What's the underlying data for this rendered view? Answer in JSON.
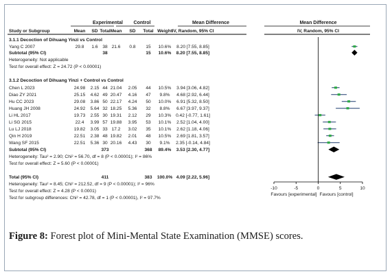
{
  "chart_data": {
    "type": "forest",
    "headers": {
      "group_exp": "Experimental",
      "group_ctl": "Control",
      "col_md": "Mean Difference",
      "study": "Study or Subgroup",
      "mean": "Mean",
      "sd": "SD",
      "total": "Total",
      "weight": "Weight",
      "method": "IV, Random, 95% CI",
      "plot_title": "Mean Difference",
      "plot_method": "IV, Random, 95% CI"
    },
    "subgroups": [
      {
        "title": "3.1.1 Decoction of Dihuang Yinzi vs Control",
        "studies": [
          {
            "name": "Yang C 2007",
            "em": "29.8",
            "esd": "1.6",
            "en": "38",
            "cm": "21.6",
            "csd": "0.8",
            "cn": "15",
            "w": "10.6%",
            "ci": "8.20 [7.55, 8.85]",
            "md": 8.2,
            "lo": 7.55,
            "hi": 8.85
          }
        ],
        "subtotal": {
          "label": "Subtotal (95% CI)",
          "en": "38",
          "cn": "15",
          "w": "10.6%",
          "ci": "8.20 [7.55, 8.85]",
          "md": 8.2,
          "lo": 7.55,
          "hi": 8.85
        },
        "notes": [
          "Heterogeneity: Not applicable",
          "Test for overall effect: Z = 24.72 (P < 0.00001)"
        ]
      },
      {
        "title": "3.1.2 Decoction of Dihuang Yinzi + Control vs Control",
        "studies": [
          {
            "name": "Chen L 2023",
            "em": "24.98",
            "esd": "2.15",
            "en": "44",
            "cm": "21.04",
            "csd": "2.05",
            "cn": "44",
            "w": "10.5%",
            "ci": "3.94 [3.06, 4.82]",
            "md": 3.94,
            "lo": 3.06,
            "hi": 4.82
          },
          {
            "name": "Diao ZY 2021",
            "em": "25.15",
            "esd": "4.62",
            "en": "49",
            "cm": "20.47",
            "csd": "4.16",
            "cn": "47",
            "w": "9.8%",
            "ci": "4.68 [2.92, 6.44]",
            "md": 4.68,
            "lo": 2.92,
            "hi": 6.44
          },
          {
            "name": "Hu CC 2023",
            "em": "29.08",
            "esd": "3.86",
            "en": "50",
            "cm": "22.17",
            "csd": "4.24",
            "cn": "50",
            "w": "10.0%",
            "ci": "6.91 [5.32, 8.50]",
            "md": 6.91,
            "lo": 5.32,
            "hi": 8.5
          },
          {
            "name": "Huang JH 2008",
            "em": "24.92",
            "esd": "5.64",
            "en": "32",
            "cm": "18.25",
            "csd": "5.36",
            "cn": "32",
            "w": "8.8%",
            "ci": "6.67 [3.97, 9.37]",
            "md": 6.67,
            "lo": 3.97,
            "hi": 9.37
          },
          {
            "name": "Li HL 2017",
            "em": "19.73",
            "esd": "2.55",
            "en": "30",
            "cm": "19.31",
            "csd": "2.12",
            "cn": "29",
            "w": "10.3%",
            "ci": "0.42 [-0.77, 1.61]",
            "md": 0.42,
            "lo": -0.77,
            "hi": 1.61
          },
          {
            "name": "Li SG 2015",
            "em": "22.4",
            "esd": "3.99",
            "en": "57",
            "cm": "19.88",
            "csd": "3.95",
            "cn": "53",
            "w": "10.1%",
            "ci": "2.52 [1.04, 4.00]",
            "md": 2.52,
            "lo": 1.04,
            "hi": 4.0
          },
          {
            "name": "Lu LJ 2018",
            "em": "19.82",
            "esd": "3.05",
            "en": "33",
            "cm": "17.2",
            "csd": "3.02",
            "cn": "35",
            "w": "10.1%",
            "ci": "2.62 [1.18, 4.06]",
            "md": 2.62,
            "lo": 1.18,
            "hi": 4.06
          },
          {
            "name": "Qin H 2019",
            "em": "22.51",
            "esd": "2.38",
            "en": "48",
            "cm": "19.82",
            "csd": "2.01",
            "cn": "48",
            "w": "10.5%",
            "ci": "2.69 [1.81, 3.57]",
            "md": 2.69,
            "lo": 1.81,
            "hi": 3.57
          },
          {
            "name": "Wang SF 2015",
            "em": "22.51",
            "esd": "5.36",
            "en": "30",
            "cm": "20.16",
            "csd": "4.43",
            "cn": "30",
            "w": "9.1%",
            "ci": "2.35 [-0.14, 4.84]",
            "md": 2.35,
            "lo": -0.14,
            "hi": 4.84
          }
        ],
        "subtotal": {
          "label": "Subtotal (95% CI)",
          "en": "373",
          "cn": "368",
          "w": "89.4%",
          "ci": "3.53 [2.30, 4.77]",
          "md": 3.53,
          "lo": 2.3,
          "hi": 4.77
        },
        "notes": [
          "Heterogeneity: Tau² = 2.90; Chi² = 56.70, df = 8 (P < 0.00001); I² = 86%",
          "Test for overall effect: Z = 5.60 (P < 0.00001)"
        ]
      }
    ],
    "total": {
      "label": "Total (95% CI)",
      "en": "411",
      "cn": "383",
      "w": "100.0%",
      "ci": "4.09 [2.22, 5.96]",
      "md": 4.09,
      "lo": 2.22,
      "hi": 5.96
    },
    "total_notes": [
      "Heterogeneity: Tau² = 8.45; Chi² = 212.52, df = 9 (P < 0.00001); I² = 96%",
      "Test for overall effect: Z = 4.28 (P < 0.0001)",
      "Test for subgroup differences: Chi² = 42.78, df = 1 (P < 0.00001), I² = 97.7%"
    ],
    "axis": {
      "ticks": [
        -10,
        -5,
        0,
        5,
        10
      ],
      "tick_labels": [
        "-10",
        "-5",
        "0",
        "5",
        "10"
      ],
      "xlim": [
        -10,
        10
      ]
    },
    "favours_left": "Favours [experimental]",
    "favours_right": "Favours [control]",
    "colors": {
      "point": "#2eaa46",
      "ci_line": "#1f3a6e",
      "diamond": "#000000",
      "rule": "#000000"
    }
  },
  "caption": {
    "label": "Figure 8:",
    "text": " Forest plot of Mini-Mental State Examination (MMSE) scores."
  }
}
